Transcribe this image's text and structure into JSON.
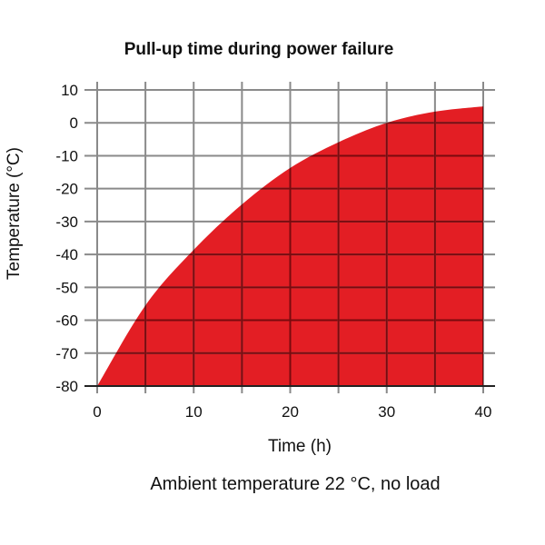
{
  "chart_data": {
    "type": "area",
    "title": "Pull-up time during power failure",
    "subtitle": "Ambient temperature 22 °C, no load",
    "xlabel": "Time (h)",
    "ylabel": "Temperature (°C)",
    "xlim": [
      0,
      40
    ],
    "ylim": [
      -80,
      10
    ],
    "xticks": [
      0,
      10,
      20,
      30,
      40
    ],
    "yticks": [
      10,
      0,
      -10,
      -20,
      -30,
      -40,
      -50,
      -60,
      -70,
      -80
    ],
    "grid": true,
    "x": [
      0,
      5,
      10,
      15,
      20,
      25,
      30,
      35,
      40
    ],
    "y": [
      -80,
      -55.5,
      -38.6,
      -24.8,
      -13.7,
      -5.9,
      0,
      3.4,
      5
    ],
    "colors": {
      "fill": "#e31e24",
      "grid": "#8a8a8a",
      "grid_on_fill": "#7a0a0e"
    }
  }
}
